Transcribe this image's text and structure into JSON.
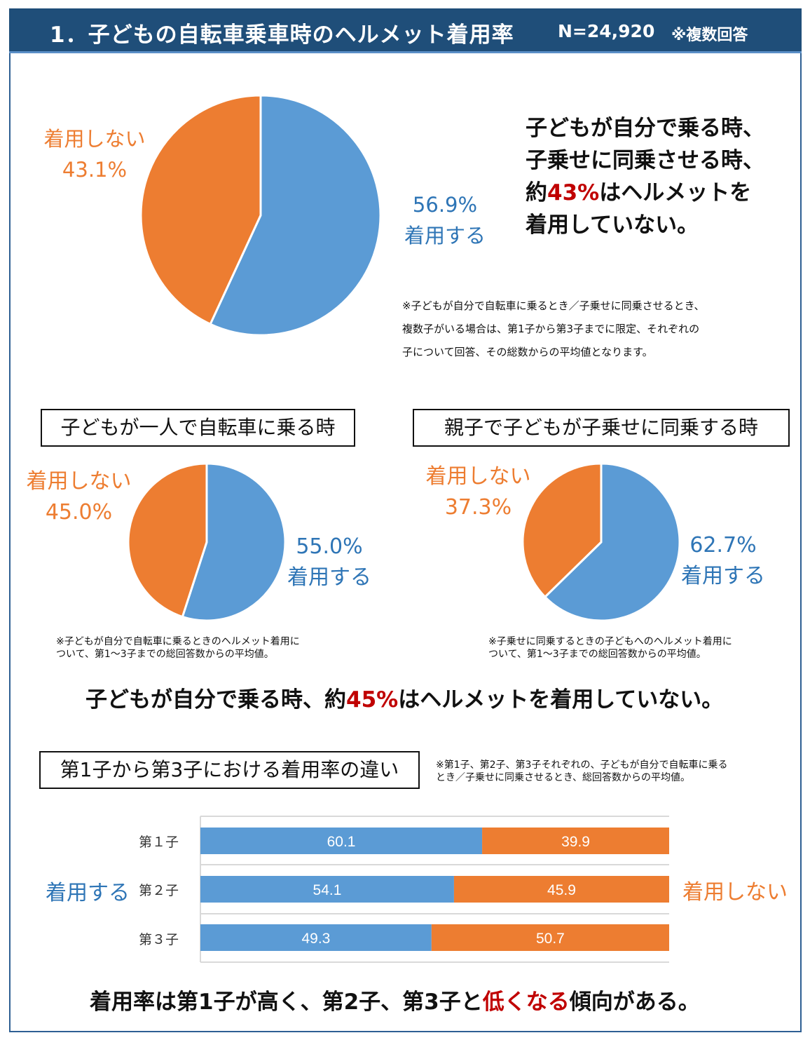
{
  "header": {
    "title": "1．子どもの自転車乗車時のヘルメット着用率",
    "n": "N=24,920",
    "multi": "※複数回答"
  },
  "labels": {
    "wear": "着用する",
    "not_wear": "着用しない"
  },
  "main": {
    "wear_pct": "56.9%",
    "not_pct": "43.1%",
    "message": [
      "子どもが自分で乗る時、",
      "子乗せに同乗させる時、"
    ],
    "message3_pre": "約",
    "message3_hl": "43%",
    "message3_post": "はヘルメットを",
    "message4": "着用していない。",
    "note": [
      "※子どもが自分で自転車に乗るとき／子乗せに同乗させるとき、",
      "複数子がいる場合は、第1子から第3子までに限定、それぞれの",
      "子について回答、その総数からの平均値となります。"
    ]
  },
  "left": {
    "title": "子どもが一人で自転車に乗る時",
    "wear_pct": "55.0%",
    "not_pct": "45.0%",
    "note": [
      "※子どもが自分で自転車に乗るときのヘルメット着用に",
      "ついて、第1～3子までの総回答数からの平均値。"
    ]
  },
  "right": {
    "title": "親子で子どもが子乗せに同乗する時",
    "wear_pct": "62.7%",
    "not_pct": "37.3%",
    "note": [
      "※子乗せに同乗するときの子どもへのヘルメット着用に",
      "ついて、第1～3子までの総回答数からの平均値。"
    ]
  },
  "conclusion1": {
    "pre": "子どもが自分で乗る時、約",
    "hl": "45%",
    "post": "はヘルメットを着用していない。"
  },
  "bars": {
    "title": "第1子から第3子における着用率の違い",
    "note": [
      "※第1子、第2子、第3子それぞれの、子どもが自分で自転車に乗る",
      "とき／子乗せに同乗させるとき、総回答数からの平均値。"
    ]
  },
  "conclusion2": {
    "pre": "着用率は第1子が高く、第2子、第3子と",
    "hl": "低くなる",
    "post": "傾向がある。"
  },
  "colors": {
    "wear": "#5b9bd5",
    "not_wear": "#ed7d31",
    "header": "#1f4e79",
    "highlight": "#c00000"
  },
  "chart_data": [
    {
      "type": "pie",
      "categories": [
        "着用する",
        "着用しない"
      ],
      "values": [
        56.9,
        43.1
      ]
    },
    {
      "type": "pie",
      "title": "子どもが一人で自転車に乗る時",
      "categories": [
        "着用する",
        "着用しない"
      ],
      "values": [
        55.0,
        45.0
      ]
    },
    {
      "type": "pie",
      "title": "親子で子どもが子乗せに同乗する時",
      "categories": [
        "着用する",
        "着用しない"
      ],
      "values": [
        62.7,
        37.3
      ]
    },
    {
      "type": "bar",
      "stacked": true,
      "orientation": "horizontal",
      "title": "第1子から第3子における着用率の違い",
      "categories": [
        "第１子",
        "第２子",
        "第３子"
      ],
      "series": [
        {
          "name": "着用する",
          "values": [
            60.1,
            54.1,
            49.3
          ]
        },
        {
          "name": "着用しない",
          "values": [
            39.9,
            45.9,
            50.7
          ]
        }
      ],
      "xlim": [
        0,
        100
      ],
      "grid": true
    }
  ]
}
